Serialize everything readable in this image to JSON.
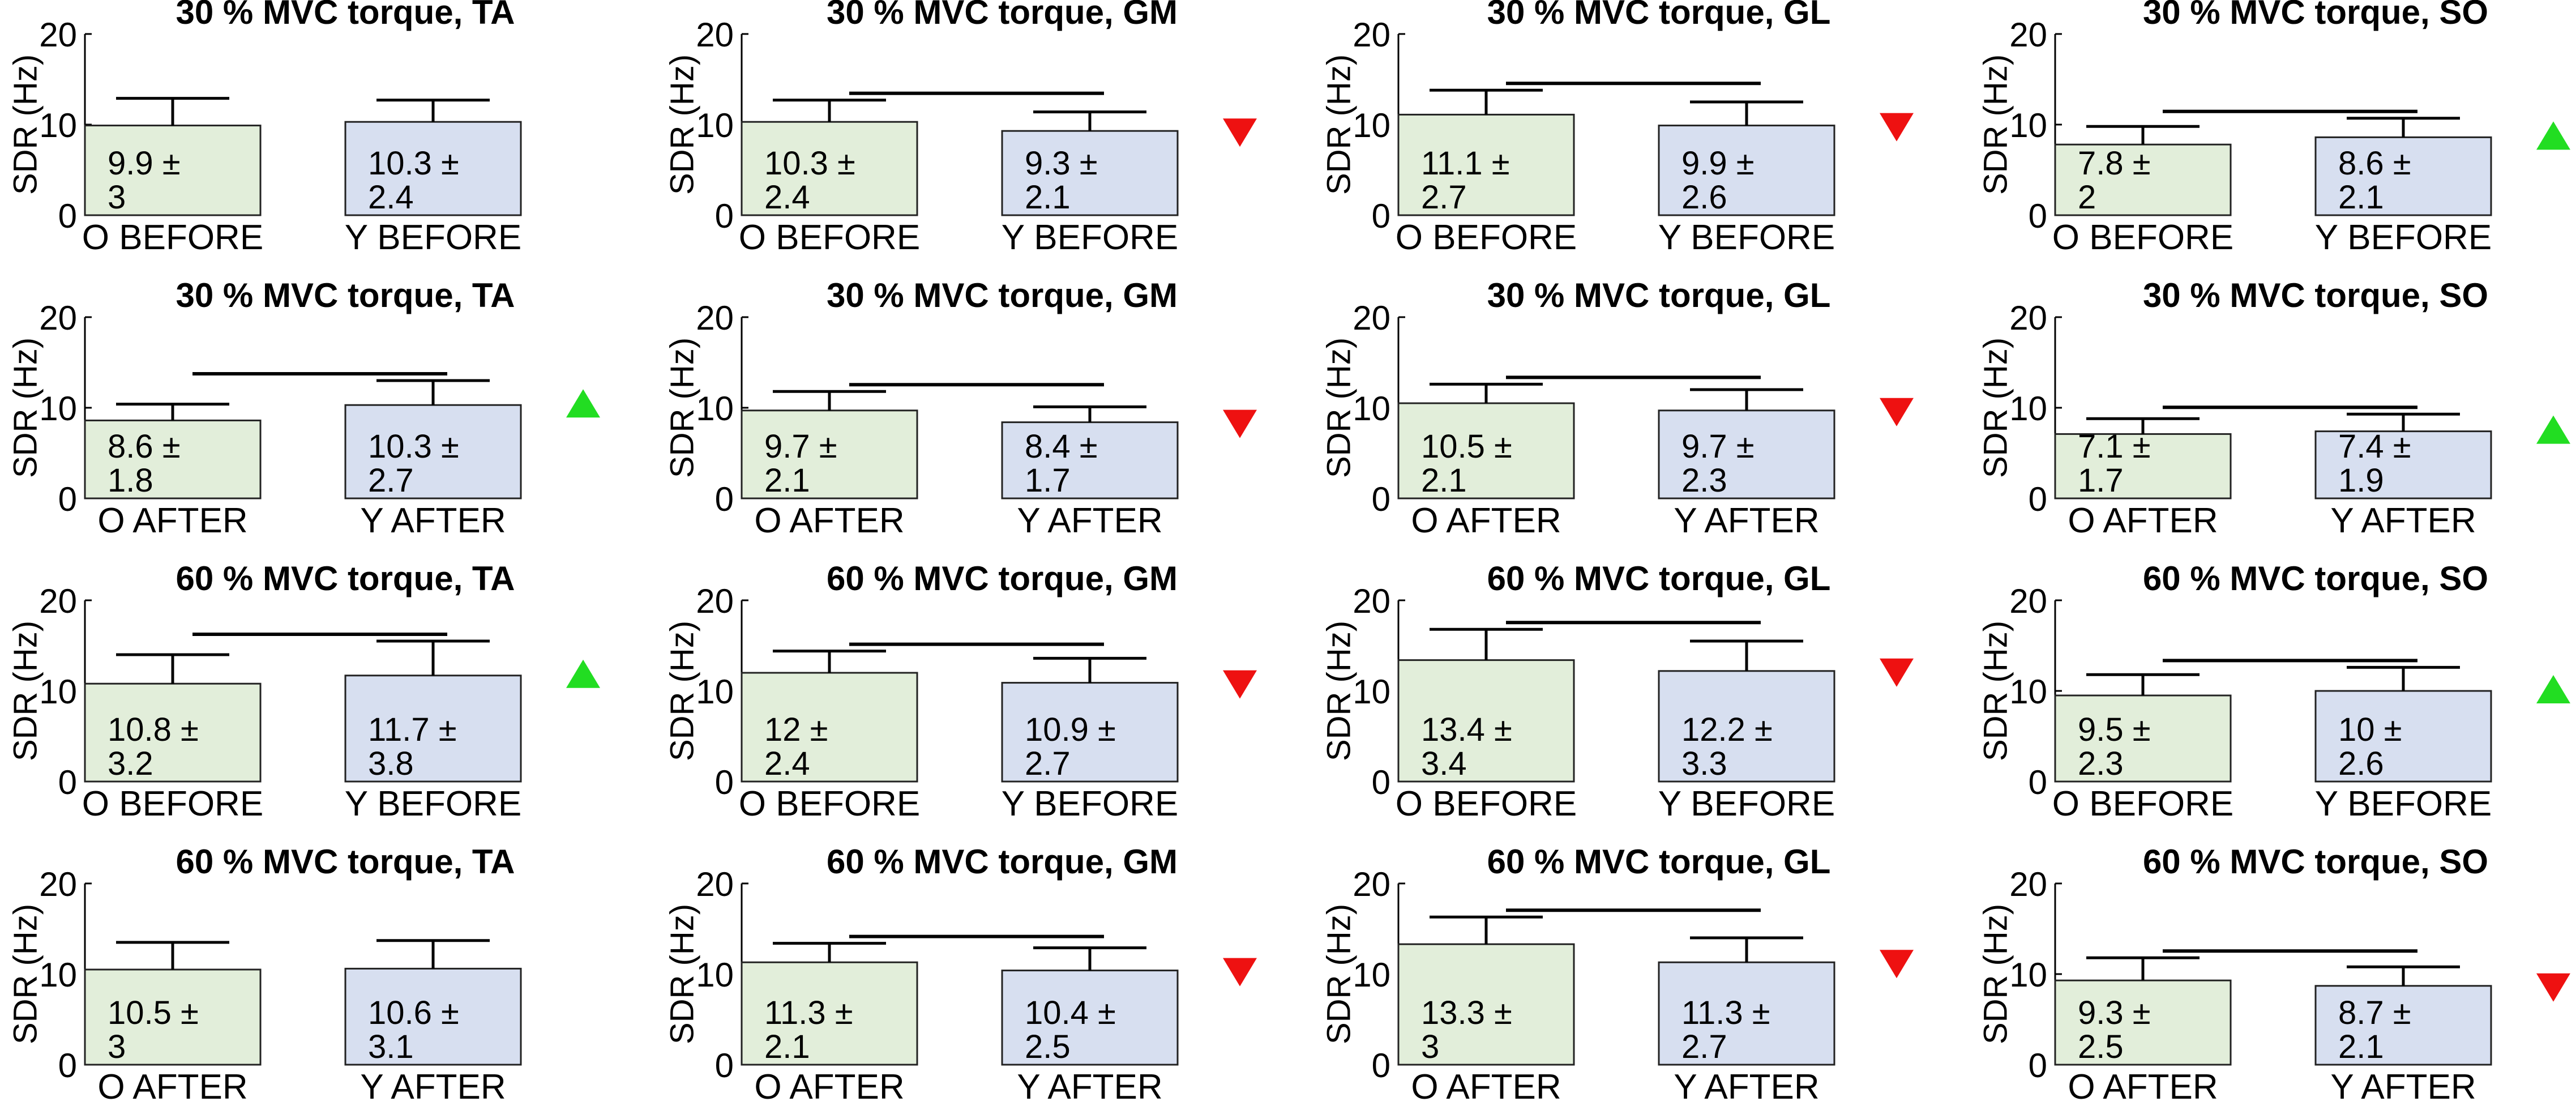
{
  "colors": {
    "o_bar": "#e2eeda",
    "y_bar": "#d7dff0",
    "increase_marker": "#22dd22",
    "decrease_marker": "#ee1111",
    "axis": "#000000"
  },
  "ylabel": "SDR (Hz)",
  "chart_data": [
    {
      "type": "bar",
      "title": "30 % MVC torque, TA",
      "ylabel": "SDR (Hz)",
      "ylim": [
        0,
        20
      ],
      "yticks": [
        "0",
        "10",
        "20"
      ],
      "categories": [
        "O BEFORE",
        "Y BEFORE"
      ],
      "values": [
        9.9,
        10.3
      ],
      "errors": [
        3,
        2.4
      ],
      "labels": [
        [
          "9.9 ±",
          "3"
        ],
        [
          "10.3 ±",
          "2.4"
        ]
      ],
      "significance_bar": false,
      "marker": "none"
    },
    {
      "type": "bar",
      "title": "30 % MVC torque, GM",
      "ylabel": "SDR (Hz)",
      "ylim": [
        0,
        20
      ],
      "yticks": [
        "0",
        "10",
        "20"
      ],
      "categories": [
        "O BEFORE",
        "Y BEFORE"
      ],
      "values": [
        10.3,
        9.3
      ],
      "errors": [
        2.4,
        2.1
      ],
      "labels": [
        [
          "10.3 ±",
          "2.4"
        ],
        [
          "9.3 ±",
          "2.1"
        ]
      ],
      "significance_bar": true,
      "marker": "down"
    },
    {
      "type": "bar",
      "title": "30 % MVC torque, GL",
      "ylabel": "SDR (Hz)",
      "ylim": [
        0,
        20
      ],
      "yticks": [
        "0",
        "10",
        "20"
      ],
      "categories": [
        "O BEFORE",
        "Y BEFORE"
      ],
      "values": [
        11.1,
        9.9
      ],
      "errors": [
        2.7,
        2.6
      ],
      "labels": [
        [
          "11.1 ±",
          "2.7"
        ],
        [
          "9.9 ±",
          "2.6"
        ]
      ],
      "significance_bar": true,
      "marker": "down"
    },
    {
      "type": "bar",
      "title": "30 % MVC torque, SO",
      "ylabel": "SDR (Hz)",
      "ylim": [
        0,
        20
      ],
      "yticks": [
        "0",
        "10",
        "20"
      ],
      "categories": [
        "O BEFORE",
        "Y BEFORE"
      ],
      "values": [
        7.8,
        8.6
      ],
      "errors": [
        2,
        2.1
      ],
      "labels": [
        [
          "7.8 ±",
          "2"
        ],
        [
          "8.6 ±",
          "2.1"
        ]
      ],
      "significance_bar": true,
      "marker": "up"
    },
    {
      "type": "bar",
      "title": "30 % MVC torque, TA",
      "ylabel": "SDR (Hz)",
      "ylim": [
        0,
        20
      ],
      "yticks": [
        "0",
        "10",
        "20"
      ],
      "categories": [
        "O AFTER",
        "Y AFTER"
      ],
      "values": [
        8.6,
        10.3
      ],
      "errors": [
        1.8,
        2.7
      ],
      "labels": [
        [
          "8.6 ±",
          "1.8"
        ],
        [
          "10.3 ±",
          "2.7"
        ]
      ],
      "significance_bar": true,
      "marker": "up"
    },
    {
      "type": "bar",
      "title": "30 % MVC torque, GM",
      "ylabel": "SDR (Hz)",
      "ylim": [
        0,
        20
      ],
      "yticks": [
        "0",
        "10",
        "20"
      ],
      "categories": [
        "O AFTER",
        "Y AFTER"
      ],
      "values": [
        9.7,
        8.4
      ],
      "errors": [
        2.1,
        1.7
      ],
      "labels": [
        [
          "9.7 ±",
          "2.1"
        ],
        [
          "8.4 ±",
          "1.7"
        ]
      ],
      "significance_bar": true,
      "marker": "down"
    },
    {
      "type": "bar",
      "title": "30 % MVC torque, GL",
      "ylabel": "SDR (Hz)",
      "ylim": [
        0,
        20
      ],
      "yticks": [
        "0",
        "10",
        "20"
      ],
      "categories": [
        "O AFTER",
        "Y AFTER"
      ],
      "values": [
        10.5,
        9.7
      ],
      "errors": [
        2.1,
        2.3
      ],
      "labels": [
        [
          "10.5 ±",
          "2.1"
        ],
        [
          "9.7 ±",
          "2.3"
        ]
      ],
      "significance_bar": true,
      "marker": "down"
    },
    {
      "type": "bar",
      "title": "30 % MVC torque, SO",
      "ylabel": "SDR (Hz)",
      "ylim": [
        0,
        20
      ],
      "yticks": [
        "0",
        "10",
        "20"
      ],
      "categories": [
        "O AFTER",
        "Y AFTER"
      ],
      "values": [
        7.1,
        7.4
      ],
      "errors": [
        1.7,
        1.9
      ],
      "labels": [
        [
          "7.1 ±",
          "1.7"
        ],
        [
          "7.4 ±",
          "1.9"
        ]
      ],
      "significance_bar": true,
      "marker": "up"
    },
    {
      "type": "bar",
      "title": "60 % MVC torque, TA",
      "ylabel": "SDR (Hz)",
      "ylim": [
        0,
        20
      ],
      "yticks": [
        "0",
        "10",
        "20"
      ],
      "categories": [
        "O BEFORE",
        "Y BEFORE"
      ],
      "values": [
        10.8,
        11.7
      ],
      "errors": [
        3.2,
        3.8
      ],
      "labels": [
        [
          "10.8 ±",
          "3.2"
        ],
        [
          "11.7 ±",
          "3.8"
        ]
      ],
      "significance_bar": true,
      "marker": "up"
    },
    {
      "type": "bar",
      "title": "60 % MVC torque, GM",
      "ylabel": "SDR (Hz)",
      "ylim": [
        0,
        20
      ],
      "yticks": [
        "0",
        "10",
        "20"
      ],
      "categories": [
        "O BEFORE",
        "Y BEFORE"
      ],
      "values": [
        12,
        10.9
      ],
      "errors": [
        2.4,
        2.7
      ],
      "labels": [
        [
          "12 ±",
          "2.4"
        ],
        [
          "10.9 ±",
          "2.7"
        ]
      ],
      "significance_bar": true,
      "marker": "down"
    },
    {
      "type": "bar",
      "title": "60 % MVC torque, GL",
      "ylabel": "SDR (Hz)",
      "ylim": [
        0,
        20
      ],
      "yticks": [
        "0",
        "10",
        "20"
      ],
      "categories": [
        "O BEFORE",
        "Y BEFORE"
      ],
      "values": [
        13.4,
        12.2
      ],
      "errors": [
        3.4,
        3.3
      ],
      "labels": [
        [
          "13.4 ±",
          "3.4"
        ],
        [
          "12.2 ±",
          "3.3"
        ]
      ],
      "significance_bar": true,
      "marker": "down"
    },
    {
      "type": "bar",
      "title": "60 % MVC torque, SO",
      "ylabel": "SDR (Hz)",
      "ylim": [
        0,
        20
      ],
      "yticks": [
        "0",
        "10",
        "20"
      ],
      "categories": [
        "O BEFORE",
        "Y BEFORE"
      ],
      "values": [
        9.5,
        10
      ],
      "errors": [
        2.3,
        2.6
      ],
      "labels": [
        [
          "9.5 ±",
          "2.3"
        ],
        [
          "10 ±",
          "2.6"
        ]
      ],
      "significance_bar": true,
      "marker": "up"
    },
    {
      "type": "bar",
      "title": "60 % MVC torque, TA",
      "ylabel": "SDR (Hz)",
      "ylim": [
        0,
        20
      ],
      "yticks": [
        "0",
        "10",
        "20"
      ],
      "categories": [
        "O AFTER",
        "Y AFTER"
      ],
      "values": [
        10.5,
        10.6
      ],
      "errors": [
        3,
        3.1
      ],
      "labels": [
        [
          "10.5 ±",
          "3"
        ],
        [
          "10.6 ±",
          "3.1"
        ]
      ],
      "significance_bar": false,
      "marker": "none"
    },
    {
      "type": "bar",
      "title": "60 % MVC torque, GM",
      "ylabel": "SDR (Hz)",
      "ylim": [
        0,
        20
      ],
      "yticks": [
        "0",
        "10",
        "20"
      ],
      "categories": [
        "O AFTER",
        "Y AFTER"
      ],
      "values": [
        11.3,
        10.4
      ],
      "errors": [
        2.1,
        2.5
      ],
      "labels": [
        [
          "11.3 ±",
          "2.1"
        ],
        [
          "10.4 ±",
          "2.5"
        ]
      ],
      "significance_bar": true,
      "marker": "down"
    },
    {
      "type": "bar",
      "title": "60 % MVC torque, GL",
      "ylabel": "SDR (Hz)",
      "ylim": [
        0,
        20
      ],
      "yticks": [
        "0",
        "10",
        "20"
      ],
      "categories": [
        "O AFTER",
        "Y AFTER"
      ],
      "values": [
        13.3,
        11.3
      ],
      "errors": [
        3,
        2.7
      ],
      "labels": [
        [
          "13.3 ±",
          "3"
        ],
        [
          "11.3 ±",
          "2.7"
        ]
      ],
      "significance_bar": true,
      "marker": "down"
    },
    {
      "type": "bar",
      "title": "60 % MVC torque, SO",
      "ylabel": "SDR (Hz)",
      "ylim": [
        0,
        20
      ],
      "yticks": [
        "0",
        "10",
        "20"
      ],
      "categories": [
        "O AFTER",
        "Y AFTER"
      ],
      "values": [
        9.3,
        8.7
      ],
      "errors": [
        2.5,
        2.1
      ],
      "labels": [
        [
          "9.3 ±",
          "2.5"
        ],
        [
          "8.7 ±",
          "2.1"
        ]
      ],
      "significance_bar": true,
      "marker": "down"
    }
  ]
}
